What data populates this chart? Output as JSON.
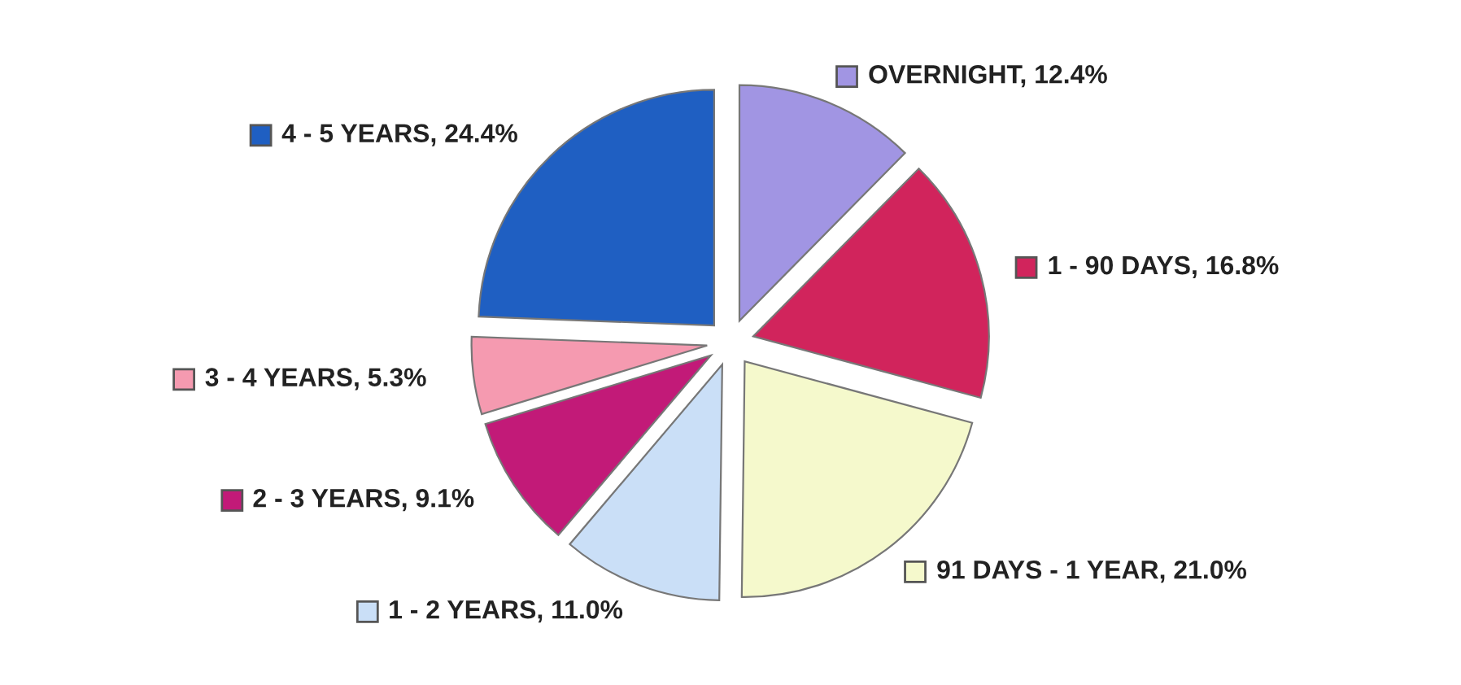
{
  "chart_data": {
    "type": "pie",
    "categories": [
      "OVERNIGHT",
      "1 - 90 DAYS",
      "91 DAYS - 1 YEAR",
      "1 - 2 YEARS",
      "2 - 3 YEARS",
      "3 - 4 YEARS",
      "4 - 5 YEARS"
    ],
    "values": [
      12.4,
      16.8,
      21.0,
      11.0,
      9.1,
      5.3,
      24.4
    ],
    "value_labels": [
      "12.4%",
      "16.8%",
      "21.0%",
      "11.0%",
      "9.1%",
      "5.3%",
      "24.4%"
    ],
    "legend": "right",
    "colors": [
      "#a195e3",
      "#d1245c",
      "#f5f9cc",
      "#cadff7",
      "#c21a78",
      "#f59ab0",
      "#1f5fc2"
    ]
  }
}
